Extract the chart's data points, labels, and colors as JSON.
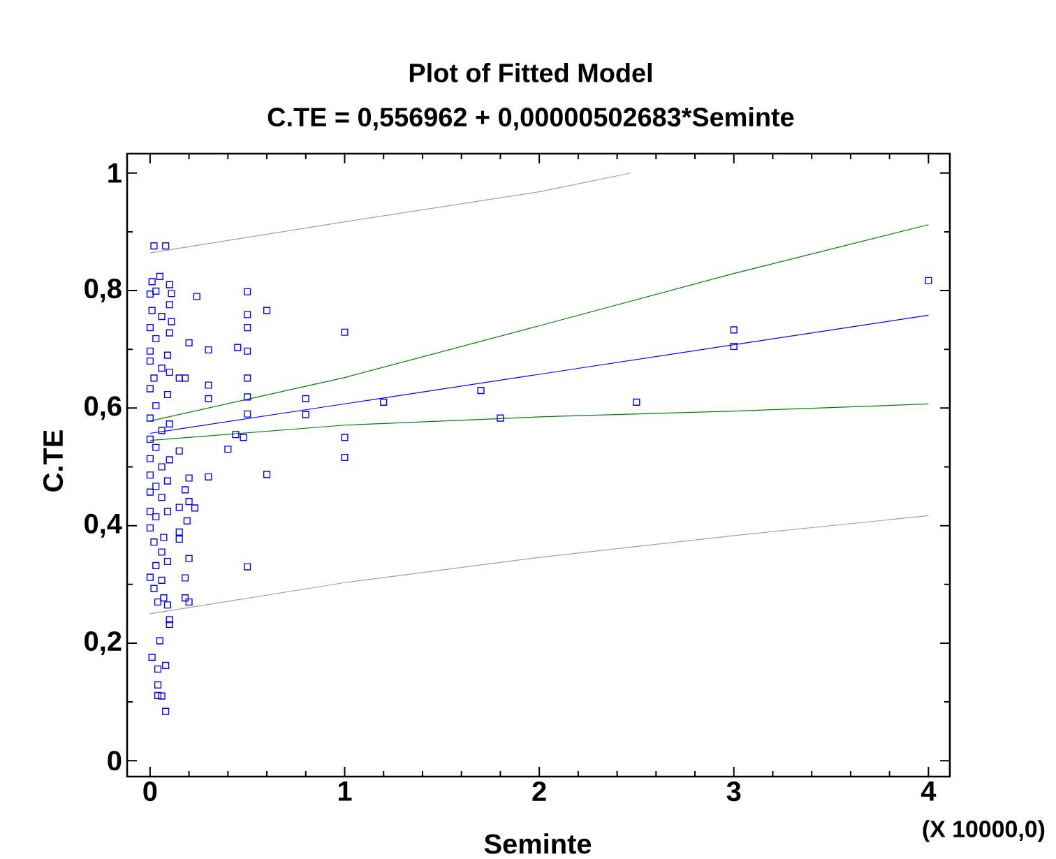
{
  "chart_data": {
    "type": "scatter",
    "title": "Plot of Fitted Model",
    "subtitle": "C.TE = 0,556962 + 0,00000502683*Seminte",
    "xlabel": "Seminte",
    "ylabel": "C.TE",
    "annotations": [
      "(X 10000,0)"
    ],
    "xlim": [
      -0.118,
      4.11
    ],
    "ylim": [
      -0.027,
      1.033
    ],
    "xticks": [
      0,
      1,
      2,
      3,
      4
    ],
    "yticks": [
      0,
      {
        "value": 0.2,
        "label": "0,2"
      },
      {
        "value": 0.4,
        "label": "0,4"
      },
      {
        "value": 0.6,
        "label": "0,6"
      },
      {
        "value": 0.8,
        "label": "0,8"
      },
      1
    ],
    "marker": "square",
    "grid": false,
    "series": [
      {
        "color": "#0000ff",
        "x": [
          4.0,
          3.0,
          3.0,
          2.5,
          1.8,
          1.7,
          1.2,
          1.0,
          1.0,
          1.0,
          0.8,
          0.8,
          0.6,
          0.6,
          0.5,
          0.5,
          0.5,
          0.5,
          0.5,
          0.5,
          0.5,
          0.5,
          0.48,
          0.44,
          0.45,
          0.4,
          0.3,
          0.3,
          0.3,
          0.3,
          0.24,
          0.2,
          0.2,
          0.2,
          0.23,
          0.2,
          0.2,
          0.18,
          0.18,
          0.19,
          0.18,
          0.18,
          0.15,
          0.15,
          0.15,
          0.15,
          0.15,
          0.02,
          0.08,
          0.05,
          0.01,
          0.1,
          0.11,
          0.0,
          0.03,
          0.1,
          0.01,
          0.06,
          0.11,
          0.0,
          0.1,
          0.03,
          0.0,
          0.09,
          0.0,
          0.06,
          0.1,
          0.02,
          0.0,
          0.09,
          0.03,
          0.0,
          0.1,
          0.06,
          0.0,
          0.03,
          0.0,
          0.1,
          0.06,
          0.0,
          0.09,
          0.03,
          0.0,
          0.06,
          0.0,
          0.09,
          0.03,
          0.0,
          0.07,
          0.02,
          0.06,
          0.09,
          0.03,
          0.0,
          0.06,
          0.02,
          0.07,
          0.04,
          0.09,
          0.1,
          0.1,
          0.05,
          0.01,
          0.08,
          0.04,
          0.04,
          0.04,
          0.06,
          0.08
        ],
        "values": [
          0.817,
          0.733,
          0.705,
          0.61,
          0.583,
          0.63,
          0.61,
          0.729,
          0.55,
          0.516,
          0.616,
          0.589,
          0.766,
          0.487,
          0.798,
          0.759,
          0.737,
          0.697,
          0.651,
          0.619,
          0.59,
          0.33,
          0.55,
          0.555,
          0.703,
          0.53,
          0.699,
          0.639,
          0.616,
          0.483,
          0.79,
          0.711,
          0.481,
          0.441,
          0.43,
          0.344,
          0.27,
          0.277,
          0.311,
          0.408,
          0.461,
          0.651,
          0.651,
          0.527,
          0.431,
          0.389,
          0.377,
          0.876,
          0.876,
          0.824,
          0.815,
          0.81,
          0.795,
          0.794,
          0.799,
          0.776,
          0.766,
          0.756,
          0.747,
          0.737,
          0.728,
          0.718,
          0.697,
          0.69,
          0.68,
          0.668,
          0.661,
          0.651,
          0.633,
          0.623,
          0.604,
          0.583,
          0.573,
          0.562,
          0.547,
          0.533,
          0.514,
          0.512,
          0.5,
          0.486,
          0.476,
          0.467,
          0.457,
          0.448,
          0.424,
          0.424,
          0.415,
          0.396,
          0.38,
          0.372,
          0.355,
          0.339,
          0.332,
          0.312,
          0.307,
          0.293,
          0.277,
          0.27,
          0.265,
          0.24,
          0.232,
          0.204,
          0.176,
          0.162,
          0.156,
          0.129,
          0.111,
          0.11,
          0.084
        ]
      },
      {
        "type": "line",
        "marker": "none",
        "color": "#0000ff",
        "x": [
          0,
          4
        ],
        "values": [
          0.557,
          0.758
        ]
      },
      {
        "type": "line",
        "marker": "none",
        "color": "#008000",
        "x": [
          0,
          1,
          2,
          3,
          4
        ],
        "values": [
          0.578,
          0.652,
          0.74,
          0.829,
          0.912
        ]
      },
      {
        "type": "line",
        "marker": "none",
        "color": "#008000",
        "x": [
          0,
          1,
          2,
          3,
          4
        ],
        "values": [
          0.545,
          0.571,
          0.585,
          0.595,
          0.607
        ]
      },
      {
        "type": "line",
        "marker": "none",
        "color": "#a0a0a0",
        "x": [
          0,
          1,
          2,
          2.47
        ],
        "values": [
          0.864,
          0.917,
          0.968,
          1.0
        ]
      },
      {
        "type": "line",
        "marker": "none",
        "color": "#a0a0a0",
        "x": [
          0,
          1,
          2,
          3,
          4
        ],
        "values": [
          0.25,
          0.303,
          0.346,
          0.383,
          0.417
        ]
      }
    ]
  }
}
